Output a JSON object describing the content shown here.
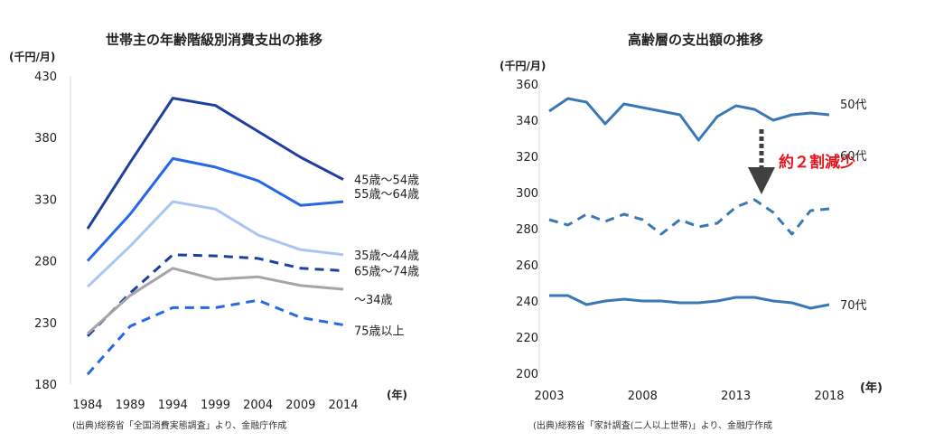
{
  "chart_data": [
    {
      "type": "line",
      "title": "世帯主の年齢階級別消費支出の推移",
      "ylabel": "(千円/月)",
      "xlabel": "(年)",
      "source": "(出典)総務省「全国消費実態調査」より、金融庁作成",
      "x": [
        1984,
        1989,
        1994,
        1999,
        2004,
        2009,
        2014
      ],
      "xticks": [
        "1984",
        "1989",
        "1994",
        "1999",
        "2004",
        "2009",
        "2014"
      ],
      "ylim": [
        180,
        430
      ],
      "yticks": [
        180,
        230,
        280,
        330,
        380,
        430
      ],
      "grid": false,
      "series": [
        {
          "name": "45歳～54歳",
          "values": [
            306,
            360,
            412,
            406,
            385,
            364,
            346
          ],
          "color": "#1f3f9e",
          "dash": false
        },
        {
          "name": "55歳～64歳",
          "values": [
            280,
            318,
            363,
            356,
            345,
            325,
            328
          ],
          "color": "#2668e6",
          "dash": false
        },
        {
          "name": "35歳～44歳",
          "values": [
            259,
            292,
            328,
            322,
            301,
            289,
            285
          ],
          "color": "#a9c6f2",
          "dash": false
        },
        {
          "name": "65歳～74歳",
          "values": [
            219,
            254,
            285,
            284,
            282,
            274,
            272
          ],
          "color": "#1f3f9e",
          "dash": true
        },
        {
          "name": "～34歳",
          "values": [
            221,
            252,
            274,
            265,
            267,
            260,
            257
          ],
          "color": "#a6a6a6",
          "dash": false
        },
        {
          "name": "75歳以上",
          "values": [
            188,
            227,
            242,
            242,
            248,
            234,
            228
          ],
          "color": "#2668e6",
          "dash": true
        }
      ]
    },
    {
      "type": "line",
      "title": "高齢層の支出額の推移",
      "ylabel": "(千円/月)",
      "xlabel": "(年)",
      "source": "(出典)総務省「家計調査(二人以上世帯)」より、金融庁作成",
      "x": [
        2003,
        2004,
        2005,
        2006,
        2007,
        2008,
        2009,
        2010,
        2011,
        2012,
        2013,
        2014,
        2015,
        2016,
        2017,
        2018
      ],
      "xticks": [
        "2003",
        "2008",
        "2013",
        "2018"
      ],
      "ylim": [
        200,
        360
      ],
      "yticks": [
        200,
        220,
        240,
        260,
        280,
        300,
        320,
        340,
        360
      ],
      "grid": false,
      "annotation": "約２割減少",
      "series": [
        {
          "name": "50代",
          "values": [
            345,
            352,
            350,
            338,
            349,
            347,
            345,
            343,
            329,
            342,
            348,
            346,
            340,
            343,
            344,
            343
          ],
          "color": "#3a78b5",
          "dash": false
        },
        {
          "name": "60代",
          "values": [
            285,
            282,
            288,
            284,
            288,
            285,
            277,
            285,
            281,
            283,
            292,
            296,
            289,
            277,
            290,
            291
          ],
          "color": "#3a78b5",
          "dash": true
        },
        {
          "name": "70代",
          "values": [
            243,
            243,
            238,
            240,
            241,
            240,
            240,
            239,
            239,
            240,
            242,
            242,
            240,
            239,
            236,
            238
          ],
          "color": "#3a78b5",
          "dash": false
        }
      ]
    }
  ]
}
